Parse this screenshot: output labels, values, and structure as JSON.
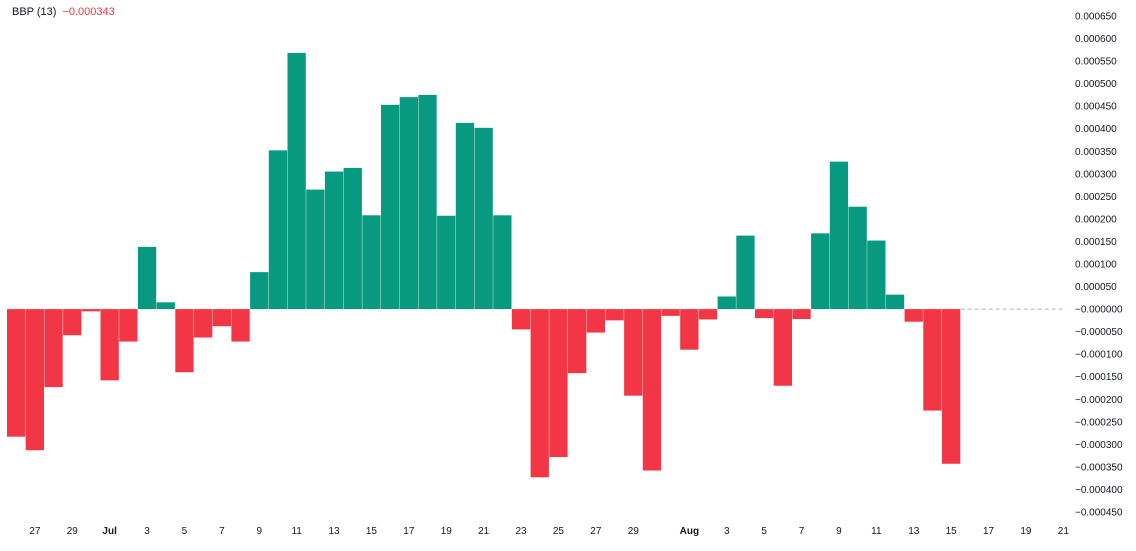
{
  "legend": {
    "name": "BBP (13)",
    "value": "−0.000343",
    "value_color": "#f23645"
  },
  "colors": {
    "positive": "#089981",
    "negative": "#f23645",
    "baseline": "#b2b5be"
  },
  "chart_data": {
    "type": "bar",
    "title": "",
    "xlabel": "",
    "ylabel": "",
    "ylim": [
      -0.00047,
      0.00066
    ],
    "y_ticks": [
      0.00065,
      0.0006,
      0.00055,
      0.0005,
      0.00045,
      0.0004,
      0.00035,
      0.0003,
      0.00025,
      0.0002,
      0.00015,
      0.0001,
      5e-05,
      0,
      -5e-05,
      -0.0001,
      -0.00015,
      -0.0002,
      -0.00025,
      -0.0003,
      -0.00035,
      -0.0004,
      -0.00045
    ],
    "y_tick_labels": [
      "0.000650",
      "0.000600",
      "0.000550",
      "0.000500",
      "0.000450",
      "0.000400",
      "0.000350",
      "0.000300",
      "0.000250",
      "0.000200",
      "0.000150",
      "0.000100",
      "0.000050",
      "−0.000000",
      "−0.000050",
      "−0.000100",
      "−0.000150",
      "−0.000200",
      "−0.000250",
      "−0.000300",
      "−0.000350",
      "−0.000400",
      "−0.000450"
    ],
    "x_ticks": [
      {
        "label": "27",
        "slot": 1,
        "month": false
      },
      {
        "label": "29",
        "slot": 3,
        "month": false
      },
      {
        "label": "Jul",
        "slot": 5,
        "month": true
      },
      {
        "label": "3",
        "slot": 7,
        "month": false
      },
      {
        "label": "5",
        "slot": 9,
        "month": false
      },
      {
        "label": "7",
        "slot": 11,
        "month": false
      },
      {
        "label": "9",
        "slot": 13,
        "month": false
      },
      {
        "label": "11",
        "slot": 15,
        "month": false
      },
      {
        "label": "13",
        "slot": 17,
        "month": false
      },
      {
        "label": "15",
        "slot": 19,
        "month": false
      },
      {
        "label": "17",
        "slot": 21,
        "month": false
      },
      {
        "label": "19",
        "slot": 23,
        "month": false
      },
      {
        "label": "21",
        "slot": 25,
        "month": false
      },
      {
        "label": "23",
        "slot": 27,
        "month": false
      },
      {
        "label": "25",
        "slot": 29,
        "month": false
      },
      {
        "label": "27",
        "slot": 31,
        "month": false
      },
      {
        "label": "29",
        "slot": 33,
        "month": false
      },
      {
        "label": "Aug",
        "slot": 36,
        "month": true
      },
      {
        "label": "3",
        "slot": 38,
        "month": false
      },
      {
        "label": "5",
        "slot": 40,
        "month": false
      },
      {
        "label": "7",
        "slot": 42,
        "month": false
      },
      {
        "label": "9",
        "slot": 44,
        "month": false
      },
      {
        "label": "11",
        "slot": 46,
        "month": false
      },
      {
        "label": "13",
        "slot": 48,
        "month": false
      },
      {
        "label": "15",
        "slot": 50,
        "month": false
      },
      {
        "label": "17",
        "slot": 52,
        "month": false
      },
      {
        "label": "19",
        "slot": 54,
        "month": false
      },
      {
        "label": "21",
        "slot": 56,
        "month": false
      }
    ],
    "values": [
      -0.000283,
      -0.000313,
      -0.000173,
      -5.8e-05,
      -5e-06,
      -0.000158,
      -7.2e-05,
      0.000138,
      1.5e-05,
      -0.00014,
      -6.3e-05,
      -3.8e-05,
      -7.2e-05,
      8.2e-05,
      0.000352,
      0.000568,
      0.000265,
      0.000305,
      0.000313,
      0.000208,
      0.000453,
      0.00047,
      0.000475,
      0.000207,
      0.000413,
      0.000402,
      0.000208,
      -4.5e-05,
      -0.000373,
      -0.000328,
      -0.000142,
      -5.2e-05,
      -2.5e-05,
      -0.000192,
      -0.000358,
      -1.5e-05,
      -9e-05,
      -2.3e-05,
      2.8e-05,
      0.000163,
      -2e-05,
      -0.00017,
      -2.2e-05,
      0.000168,
      0.000327,
      0.000227,
      0.000152,
      3.2e-05,
      -2.8e-05,
      -0.000225,
      -0.000343
    ]
  }
}
